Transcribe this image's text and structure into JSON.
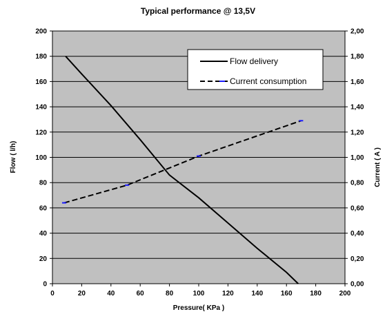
{
  "chart_data": {
    "type": "line",
    "title": "Typical performance @ 13,5V",
    "xlabel": "Pressure( KPa )",
    "ylabel_left": "Flow ( l/h)",
    "ylabel_right": "Current ( A )",
    "xlim": [
      0,
      200
    ],
    "ylim_left": [
      0,
      200
    ],
    "ylim_right": [
      0,
      2
    ],
    "x_ticks": [
      "0",
      "20",
      "40",
      "60",
      "80",
      "100",
      "120",
      "140",
      "160",
      "180",
      "200"
    ],
    "y_left_ticks": [
      "0",
      "20",
      "40",
      "60",
      "80",
      "100",
      "120",
      "140",
      "160",
      "180",
      "200"
    ],
    "y_right_ticks": [
      "0,00",
      "0,20",
      "0,40",
      "0,60",
      "0,80",
      "1,00",
      "1,20",
      "1,40",
      "1,60",
      "1,80",
      "2,00"
    ],
    "grid": true,
    "legend_position": "top-right",
    "colors": {
      "plot_background": "#c0c0c0",
      "flow_line": "#000000",
      "current_dash": "#000000",
      "current_accent": "#1a1aff"
    },
    "series": [
      {
        "name": "Flow delivery",
        "axis": "left",
        "style": "solid",
        "x": [
          9,
          20,
          40,
          60,
          80,
          100,
          120,
          140,
          160,
          168
        ],
        "y": [
          180,
          166,
          141,
          114,
          86,
          68,
          48,
          28,
          9,
          0
        ]
      },
      {
        "name": "Current consumption",
        "axis": "right",
        "style": "dashed",
        "x": [
          8,
          51,
          100,
          170
        ],
        "y": [
          0.64,
          0.78,
          1.01,
          1.29
        ]
      }
    ]
  }
}
